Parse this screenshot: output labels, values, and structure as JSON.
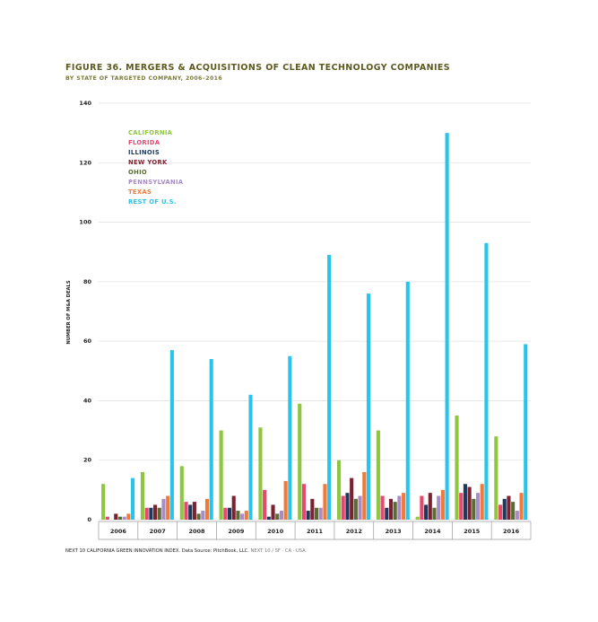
{
  "header": {
    "title": "FIGURE 36. MERGERS & ACQUISITIONS OF CLEAN TECHNOLOGY COMPANIES",
    "subtitle": "BY STATE OF TARGETED COMPANY, 2006–2016"
  },
  "footer": {
    "source": "NEXT 10 CALIFORNIA GREEN INNOVATION INDEX. Data Source: PitchBook, LLC.",
    "org": " NEXT 10  /  SF · CA · USA"
  },
  "chart_data": {
    "type": "bar",
    "title": "FIGURE 36. MERGERS & ACQUISITIONS OF CLEAN TECHNOLOGY COMPANIES",
    "subtitle": "BY STATE OF TARGETED COMPANY, 2006–2016",
    "xlabel": "",
    "ylabel": "NUMBER OF M&A DEALS",
    "ylim": [
      0,
      140
    ],
    "yticks": [
      0,
      20,
      40,
      60,
      80,
      100,
      120,
      140
    ],
    "grid": true,
    "legend_position": "top-left",
    "categories": [
      "2006",
      "2007",
      "2008",
      "2009",
      "2010",
      "2011",
      "2012",
      "2013",
      "2014",
      "2015",
      "2016"
    ],
    "series": [
      {
        "name": "CALIFORNIA",
        "color": "#8dc63f",
        "values": [
          12,
          16,
          18,
          30,
          31,
          39,
          20,
          30,
          1,
          35,
          28
        ]
      },
      {
        "name": "FLORIDA",
        "color": "#e8476e",
        "values": [
          1,
          4,
          6,
          4,
          10,
          12,
          8,
          8,
          8,
          9,
          5
        ]
      },
      {
        "name": "ILLINOIS",
        "color": "#1d3a5c",
        "values": [
          0,
          4,
          5,
          4,
          1,
          3,
          9,
          4,
          5,
          12,
          7
        ]
      },
      {
        "name": "NEW YORK",
        "color": "#7b2230",
        "values": [
          2,
          5,
          6,
          8,
          5,
          7,
          14,
          7,
          9,
          11,
          8
        ]
      },
      {
        "name": "OHIO",
        "color": "#5a6b34",
        "values": [
          1,
          4,
          2,
          3,
          2,
          4,
          7,
          6,
          4,
          7,
          6
        ]
      },
      {
        "name": "PENNSYLVANIA",
        "color": "#a98bc7",
        "values": [
          1,
          7,
          3,
          2,
          3,
          4,
          8,
          8,
          8,
          9,
          3
        ]
      },
      {
        "name": "TEXAS",
        "color": "#f07a3a",
        "values": [
          2,
          8,
          7,
          3,
          13,
          12,
          16,
          9,
          10,
          12,
          9
        ]
      },
      {
        "name": "REST OF U.S.",
        "color": "#29c4ec",
        "values": [
          14,
          57,
          54,
          42,
          55,
          89,
          76,
          80,
          130,
          93,
          59
        ]
      }
    ]
  }
}
